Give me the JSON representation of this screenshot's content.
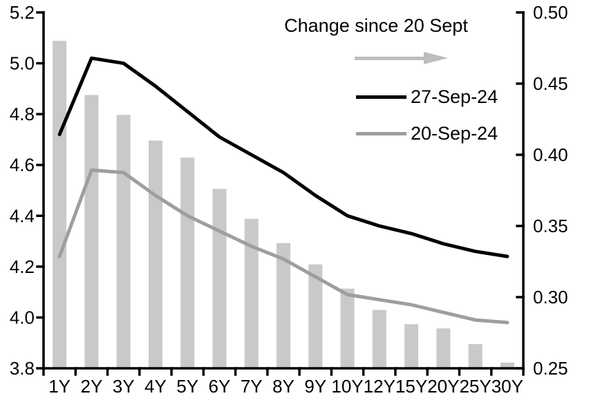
{
  "chart_data": {
    "type": "combo",
    "title": "",
    "categories": [
      "1Y",
      "2Y",
      "3Y",
      "4Y",
      "5Y",
      "6Y",
      "7Y",
      "8Y",
      "9Y",
      "10Y",
      "12Y",
      "15Y",
      "20Y",
      "25Y",
      "30Y"
    ],
    "series": [
      {
        "name": "Change since 20 Sept",
        "type": "bar",
        "axis": "right",
        "color": "#c9c9c9",
        "values": [
          0.48,
          0.442,
          0.428,
          0.41,
          0.398,
          0.376,
          0.355,
          0.338,
          0.323,
          0.306,
          0.291,
          0.281,
          0.278,
          0.267,
          0.254
        ]
      },
      {
        "name": "27-Sep-24",
        "type": "line",
        "axis": "left",
        "color": "#000000",
        "values": [
          4.72,
          5.02,
          5.0,
          4.91,
          4.81,
          4.71,
          4.64,
          4.57,
          4.48,
          4.4,
          4.36,
          4.33,
          4.29,
          4.26,
          4.24
        ]
      },
      {
        "name": "20-Sep-24",
        "type": "line",
        "axis": "left",
        "color": "#9e9e9e",
        "values": [
          4.24,
          4.58,
          4.57,
          4.48,
          4.4,
          4.34,
          4.28,
          4.23,
          4.16,
          4.09,
          4.07,
          4.05,
          4.02,
          3.99,
          3.98
        ]
      }
    ],
    "left_axis": {
      "min": 3.8,
      "max": 5.2,
      "step": 0.2,
      "tick_labels": [
        "3.8",
        "4.0",
        "4.2",
        "4.4",
        "4.6",
        "4.8",
        "5.0",
        "5.2"
      ]
    },
    "right_axis": {
      "min": 0.25,
      "max": 0.5,
      "step": 0.05,
      "tick_labels": [
        "0.25",
        "0.30",
        "0.35",
        "0.40",
        "0.45",
        "0.50"
      ]
    },
    "legend": {
      "title": "Change since 20 Sept",
      "arrow_icon_color": "#bdbdbd",
      "entries": [
        "27-Sep-24",
        "20-Sep-24"
      ],
      "position": "top-right"
    },
    "grid": false
  }
}
